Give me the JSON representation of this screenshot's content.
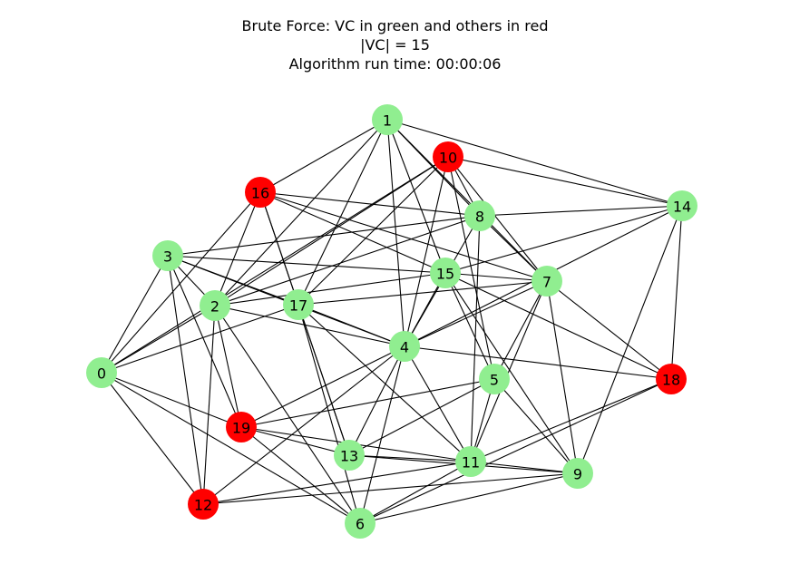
{
  "title": {
    "line1": "Brute Force: VC in green and others in red",
    "line2": "|VC| = 15",
    "line3": "Algorithm run time: 00:00:06"
  },
  "colors": {
    "vc": "#90ee90",
    "other": "#ff0000"
  },
  "nodes": [
    {
      "id": "0",
      "in_vc": true
    },
    {
      "id": "1",
      "in_vc": true
    },
    {
      "id": "2",
      "in_vc": true
    },
    {
      "id": "3",
      "in_vc": true
    },
    {
      "id": "4",
      "in_vc": true
    },
    {
      "id": "5",
      "in_vc": true
    },
    {
      "id": "6",
      "in_vc": true
    },
    {
      "id": "7",
      "in_vc": true
    },
    {
      "id": "8",
      "in_vc": true
    },
    {
      "id": "9",
      "in_vc": true
    },
    {
      "id": "10",
      "in_vc": false
    },
    {
      "id": "11",
      "in_vc": true
    },
    {
      "id": "12",
      "in_vc": false
    },
    {
      "id": "13",
      "in_vc": true
    },
    {
      "id": "14",
      "in_vc": true
    },
    {
      "id": "15",
      "in_vc": true
    },
    {
      "id": "16",
      "in_vc": false
    },
    {
      "id": "17",
      "in_vc": true
    },
    {
      "id": "18",
      "in_vc": false
    },
    {
      "id": "19",
      "in_vc": false
    }
  ],
  "edges": [
    [
      "1",
      "16"
    ],
    [
      "1",
      "2"
    ],
    [
      "1",
      "17"
    ],
    [
      "1",
      "4"
    ],
    [
      "1",
      "15"
    ],
    [
      "1",
      "8"
    ],
    [
      "1",
      "7"
    ],
    [
      "1",
      "14"
    ],
    [
      "10",
      "8"
    ],
    [
      "10",
      "14"
    ],
    [
      "10",
      "2"
    ],
    [
      "10",
      "17"
    ],
    [
      "10",
      "0"
    ],
    [
      "10",
      "4"
    ],
    [
      "10",
      "5"
    ],
    [
      "10",
      "7"
    ],
    [
      "16",
      "8"
    ],
    [
      "16",
      "7"
    ],
    [
      "16",
      "15"
    ],
    [
      "16",
      "17"
    ],
    [
      "16",
      "13"
    ],
    [
      "16",
      "2"
    ],
    [
      "16",
      "0"
    ],
    [
      "8",
      "3"
    ],
    [
      "8",
      "14"
    ],
    [
      "8",
      "2"
    ],
    [
      "8",
      "4"
    ],
    [
      "8",
      "11"
    ],
    [
      "8",
      "7"
    ],
    [
      "14",
      "15"
    ],
    [
      "14",
      "4"
    ],
    [
      "14",
      "18"
    ],
    [
      "14",
      "9"
    ],
    [
      "3",
      "15"
    ],
    [
      "3",
      "17"
    ],
    [
      "3",
      "4"
    ],
    [
      "3",
      "19"
    ],
    [
      "3",
      "0"
    ],
    [
      "3",
      "12"
    ],
    [
      "3",
      "2"
    ],
    [
      "15",
      "2"
    ],
    [
      "15",
      "4"
    ],
    [
      "15",
      "5"
    ],
    [
      "15",
      "7"
    ],
    [
      "15",
      "18"
    ],
    [
      "15",
      "9"
    ],
    [
      "7",
      "17"
    ],
    [
      "7",
      "4"
    ],
    [
      "7",
      "5"
    ],
    [
      "7",
      "11"
    ],
    [
      "7",
      "9"
    ],
    [
      "7",
      "18"
    ],
    [
      "2",
      "19"
    ],
    [
      "2",
      "4"
    ],
    [
      "2",
      "12"
    ],
    [
      "2",
      "6"
    ],
    [
      "2",
      "0"
    ],
    [
      "17",
      "0"
    ],
    [
      "17",
      "13"
    ],
    [
      "17",
      "6"
    ],
    [
      "17",
      "11"
    ],
    [
      "17",
      "4"
    ],
    [
      "4",
      "13"
    ],
    [
      "4",
      "11"
    ],
    [
      "4",
      "6"
    ],
    [
      "4",
      "12"
    ],
    [
      "4",
      "18"
    ],
    [
      "4",
      "19"
    ],
    [
      "0",
      "19"
    ],
    [
      "0",
      "12"
    ],
    [
      "0",
      "6"
    ],
    [
      "5",
      "19"
    ],
    [
      "5",
      "13"
    ],
    [
      "5",
      "11"
    ],
    [
      "5",
      "9"
    ],
    [
      "19",
      "13"
    ],
    [
      "19",
      "11"
    ],
    [
      "19",
      "6"
    ],
    [
      "13",
      "11"
    ],
    [
      "13",
      "9"
    ],
    [
      "11",
      "9"
    ],
    [
      "11",
      "18"
    ],
    [
      "11",
      "6"
    ],
    [
      "11",
      "12"
    ],
    [
      "9",
      "6"
    ],
    [
      "12",
      "9"
    ],
    [
      "18",
      "6"
    ]
  ]
}
